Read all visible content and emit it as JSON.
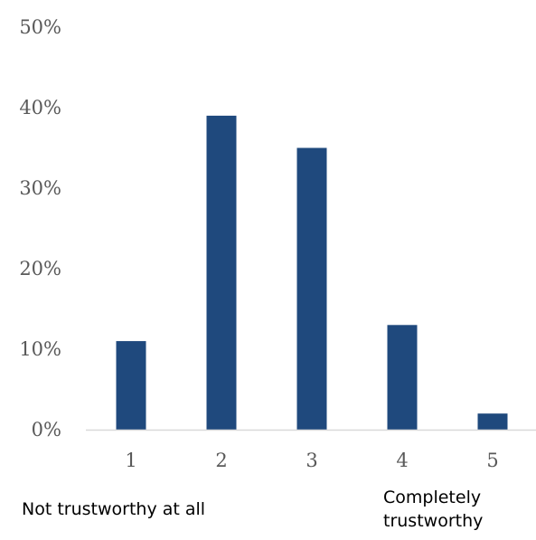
{
  "chart_data": {
    "type": "bar",
    "categories": [
      "1",
      "2",
      "3",
      "4",
      "5"
    ],
    "values": [
      11,
      39,
      35,
      13,
      2
    ],
    "ylim": [
      0,
      50
    ],
    "yticks": [
      "0%",
      "10%",
      "20%",
      "30%",
      "40%",
      "50%"
    ],
    "title": "",
    "xlabel": "",
    "ylabel": "",
    "grid": false,
    "bar_color": "#1F497D",
    "axis_color": "#D9D9D9",
    "annotations": {
      "left": "Not trustworthy at all",
      "right_line1": "Completely",
      "right_line2": "trustworthy"
    }
  }
}
